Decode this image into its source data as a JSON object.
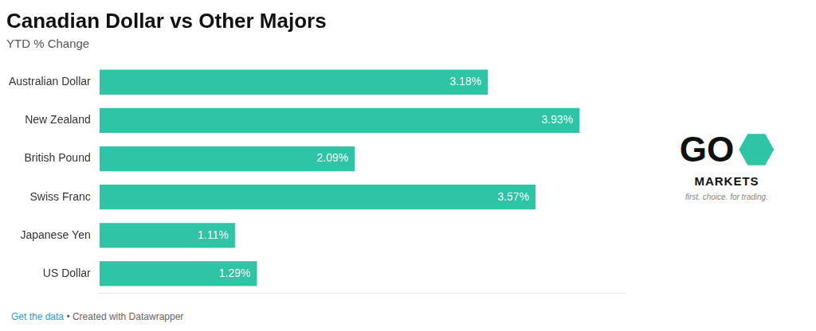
{
  "chart_data": {
    "type": "bar",
    "orientation": "horizontal",
    "title": "Canadian Dollar vs Other Majors",
    "subtitle": "YTD % Change",
    "categories": [
      "Australian Dollar",
      "New Zealand",
      "British Pound",
      "Swiss Franc",
      "Japanese Yen",
      "US Dollar"
    ],
    "values": [
      3.18,
      3.93,
      2.09,
      3.57,
      1.11,
      1.29
    ],
    "value_labels": [
      "3.18%",
      "3.93%",
      "2.09%",
      "3.57%",
      "1.11%",
      "1.29%"
    ],
    "data_labels": true,
    "color": "#2ec4a5",
    "xlim": [
      0,
      4.3
    ],
    "grid": false,
    "tick_labels": "y",
    "annotations": [
      "Get the data",
      "• Created with Datawrapper",
      "G",
      "O",
      "MARKETS",
      "first. choice. for trading."
    ]
  }
}
